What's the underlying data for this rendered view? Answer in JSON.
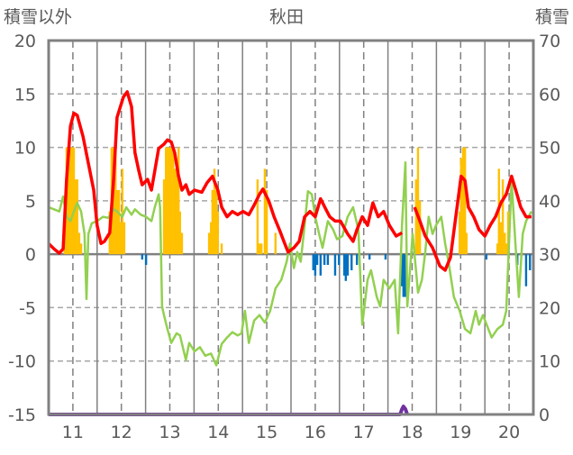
{
  "chart_data": {
    "type": "line",
    "title": "秋田",
    "ylabel_left": "積雪以外",
    "ylabel_right": "積雪",
    "xlim": [
      10.5,
      20.5
    ],
    "ylim_left": [
      -15,
      20
    ],
    "ylim_right": [
      0,
      70
    ],
    "x_ticks": [
      "11",
      "12",
      "13",
      "14",
      "15",
      "16",
      "17",
      "18",
      "19",
      "20"
    ],
    "y_ticks_left": [
      "20",
      "15",
      "10",
      "5",
      "0",
      "-5",
      "-10",
      "-15"
    ],
    "y_ticks_right": [
      "70",
      "60",
      "50",
      "40",
      "30",
      "20",
      "10",
      "0"
    ],
    "grid": true,
    "colors": {
      "red": "#ff0000",
      "green": "#92d050",
      "orange": "#ffc000",
      "blue": "#0070c0",
      "purple": "#7030a0",
      "frame": "#808080"
    },
    "series": [
      {
        "name": "red-line",
        "axis": "left",
        "type": "line",
        "color": "#ff0000",
        "x": [
          10.5,
          10.61,
          10.72,
          10.8,
          10.87,
          10.95,
          11.02,
          11.09,
          11.21,
          11.32,
          11.43,
          11.5,
          11.58,
          11.65,
          11.76,
          11.84,
          11.91,
          12.04,
          12.12,
          12.21,
          12.28,
          12.36,
          12.43,
          12.54,
          12.62,
          12.69,
          12.77,
          12.88,
          12.95,
          13.03,
          13.1,
          13.18,
          13.25,
          13.33,
          13.4,
          13.51,
          13.66,
          13.77,
          13.88,
          13.99,
          14.07,
          14.18,
          14.29,
          14.4,
          14.51,
          14.63,
          14.74,
          14.85,
          14.92,
          15.04,
          15.15,
          15.26,
          15.37,
          15.44,
          15.56,
          15.67,
          15.78,
          15.89,
          16.0,
          16.11,
          16.22,
          16.3,
          16.41,
          16.52,
          16.67,
          16.78,
          16.86,
          16.97,
          17.08,
          17.19,
          17.3,
          17.41,
          17.53,
          17.67,
          17.79,
          17.95,
          18.05,
          18.16,
          18.27,
          18.42,
          18.57,
          18.68,
          18.79,
          18.9,
          19.01,
          19.09,
          19.16,
          19.27,
          19.38,
          19.5,
          19.61,
          19.72,
          19.83,
          19.94,
          20.05,
          20.13,
          20.24,
          20.35,
          20.46
        ],
        "y": [
          1.0,
          0.5,
          0.1,
          0.5,
          7.0,
          12.0,
          13.2,
          13.0,
          11.0,
          8.5,
          6.0,
          2.7,
          1.0,
          1.2,
          2.0,
          7.0,
          12.8,
          14.7,
          15.2,
          13.8,
          9.5,
          7.8,
          6.5,
          7.0,
          6.0,
          7.8,
          9.9,
          10.3,
          10.7,
          10.5,
          9.5,
          7.3,
          6.0,
          6.5,
          5.6,
          6.0,
          5.8,
          6.7,
          7.3,
          6.0,
          4.4,
          3.5,
          4.0,
          3.7,
          4.0,
          3.7,
          4.6,
          5.6,
          6.1,
          5.0,
          3.5,
          2.3,
          1.0,
          0.2,
          0.6,
          1.2,
          3.5,
          4.0,
          3.5,
          5.2,
          4.2,
          3.5,
          3.1,
          3.1,
          1.9,
          1.2,
          2.3,
          3.5,
          2.7,
          4.8,
          3.5,
          4.0,
          2.7,
          1.7,
          2.0,
          null,
          4.4,
          3.1,
          1.7,
          0.6,
          -1.1,
          -1.5,
          -0.3,
          3.5,
          7.3,
          6.9,
          4.4,
          3.5,
          2.3,
          1.7,
          2.7,
          3.5,
          4.8,
          5.6,
          7.3,
          6.1,
          4.4,
          3.5,
          3.5
        ]
      },
      {
        "name": "green-line",
        "axis": "left",
        "type": "line",
        "color": "#92d050",
        "x": [
          10.5,
          10.61,
          10.72,
          10.8,
          10.87,
          10.95,
          11.02,
          11.09,
          11.17,
          11.24,
          11.28,
          11.32,
          11.39,
          11.5,
          11.62,
          11.73,
          11.84,
          11.91,
          12.02,
          12.1,
          12.21,
          12.28,
          12.4,
          12.51,
          12.62,
          12.69,
          12.77,
          12.8,
          12.84,
          12.88,
          12.95,
          13.03,
          13.14,
          13.21,
          13.33,
          13.4,
          13.51,
          13.62,
          13.73,
          13.85,
          13.96,
          14.07,
          14.18,
          14.29,
          14.4,
          14.48,
          14.55,
          14.63,
          14.74,
          14.85,
          14.96,
          15.07,
          15.18,
          15.3,
          15.41,
          15.48,
          15.56,
          15.63,
          15.7,
          15.78,
          15.85,
          15.93,
          16.0,
          16.08,
          16.15,
          16.26,
          16.37,
          16.45,
          16.56,
          16.67,
          16.78,
          16.89,
          16.97,
          17.08,
          17.15,
          17.27,
          17.34,
          17.41,
          17.53,
          17.64,
          17.71,
          17.79,
          17.86,
          17.9,
          18.01,
          18.12,
          18.2,
          18.27,
          18.34,
          18.42,
          18.49,
          18.6,
          18.68,
          18.75,
          18.86,
          18.98,
          19.09,
          19.2,
          19.31,
          19.38,
          19.46,
          19.57,
          19.64,
          19.76,
          19.87,
          19.94,
          20.02,
          20.05,
          20.13,
          20.2,
          20.28,
          20.35,
          20.46
        ],
        "y": [
          4.4,
          4.2,
          4.0,
          5.4,
          3.5,
          3.1,
          4.0,
          4.8,
          4.0,
          1.9,
          -4.2,
          1.9,
          2.9,
          3.1,
          3.5,
          3.4,
          4.2,
          4.0,
          3.5,
          4.4,
          3.7,
          4.2,
          3.7,
          3.5,
          3.1,
          4.4,
          5.6,
          4.4,
          -4.9,
          -5.7,
          -7.0,
          -8.3,
          -7.4,
          -7.6,
          -9.9,
          -8.3,
          -9.1,
          -8.7,
          -9.5,
          -9.3,
          -10.4,
          -8.4,
          -7.8,
          -7.3,
          -7.6,
          -7.4,
          -5.3,
          -8.3,
          -6.2,
          -5.7,
          -6.4,
          -5.3,
          -3.2,
          -2.4,
          -0.7,
          1.0,
          -1.3,
          0.2,
          -0.7,
          2.7,
          5.9,
          5.6,
          3.5,
          1.9,
          0.6,
          3.1,
          2.3,
          1.4,
          1.7,
          3.5,
          4.4,
          2.3,
          -6.6,
          -2.4,
          -1.5,
          -4.0,
          -4.9,
          -2.4,
          -3.2,
          -2.4,
          -7.4,
          2.7,
          8.6,
          -4.9,
          1.9,
          -3.6,
          -2.4,
          0.2,
          3.5,
          1.9,
          2.7,
          3.5,
          1.0,
          -0.7,
          -4.0,
          -5.3,
          -7.0,
          -7.4,
          -5.3,
          -6.6,
          -5.7,
          -7.0,
          -7.8,
          -7.0,
          -6.6,
          -5.3,
          3.5,
          6.9,
          1.0,
          -4.0,
          1.9,
          3.1,
          4.0
        ]
      },
      {
        "name": "orange-bars",
        "axis": "left",
        "type": "bar",
        "color": "#ffc000",
        "x": [
          10.83,
          10.87,
          10.91,
          10.95,
          10.98,
          11.02,
          11.06,
          11.09,
          11.13,
          11.17,
          11.76,
          11.8,
          11.84,
          11.88,
          11.91,
          11.95,
          11.99,
          12.02,
          12.06,
          12.88,
          12.92,
          12.95,
          12.99,
          13.03,
          13.07,
          13.1,
          13.14,
          13.18,
          13.21,
          13.25,
          13.81,
          13.85,
          13.88,
          13.92,
          13.96,
          13.99,
          14.07,
          14.81,
          14.85,
          14.89,
          14.96,
          15.0,
          15.18,
          18.08,
          18.12,
          18.16,
          18.98,
          19.01,
          19.05,
          19.09,
          19.12,
          19.76,
          19.79,
          19.83,
          19.87,
          19.91,
          19.94,
          19.98
        ],
        "y": [
          4,
          10,
          10,
          10,
          10,
          10,
          7,
          7,
          2,
          1,
          4,
          10,
          10,
          10,
          6,
          6,
          3,
          8,
          3,
          7,
          10,
          10,
          10,
          10,
          10,
          8,
          8,
          10,
          4,
          2,
          2,
          3,
          6,
          8,
          6,
          4,
          1,
          7,
          1,
          1,
          8,
          6,
          2,
          7,
          10,
          5,
          4,
          9,
          10,
          10,
          2,
          1,
          8,
          3,
          7,
          2,
          1,
          4
        ]
      },
      {
        "name": "blue-bars",
        "axis": "left",
        "type": "bar",
        "color": "#0070c0",
        "x": [
          12.43,
          12.51,
          15.96,
          16.0,
          16.04,
          16.11,
          16.19,
          16.26,
          16.41,
          16.49,
          16.6,
          16.63,
          16.67,
          16.75,
          16.86,
          17.12,
          17.45,
          17.79,
          17.82,
          17.86,
          19.53,
          20.17,
          20.35,
          20.43
        ],
        "y": [
          -0.5,
          -1,
          -1.5,
          -2,
          -1,
          -2,
          -1,
          -1,
          -2,
          -1,
          -2,
          -2.5,
          -2,
          -1.5,
          -1,
          -0.5,
          -0.5,
          -3,
          -4,
          -4,
          -0.5,
          -1,
          -3,
          -1.5
        ]
      },
      {
        "name": "purple-line",
        "axis": "right",
        "type": "line",
        "color": "#7030a0",
        "x": [
          10.5,
          17.75,
          17.79,
          17.82,
          17.86,
          17.9,
          18.05,
          20.5
        ],
        "y": [
          0,
          0,
          1,
          1.5,
          1,
          0,
          null,
          0
        ]
      }
    ]
  }
}
